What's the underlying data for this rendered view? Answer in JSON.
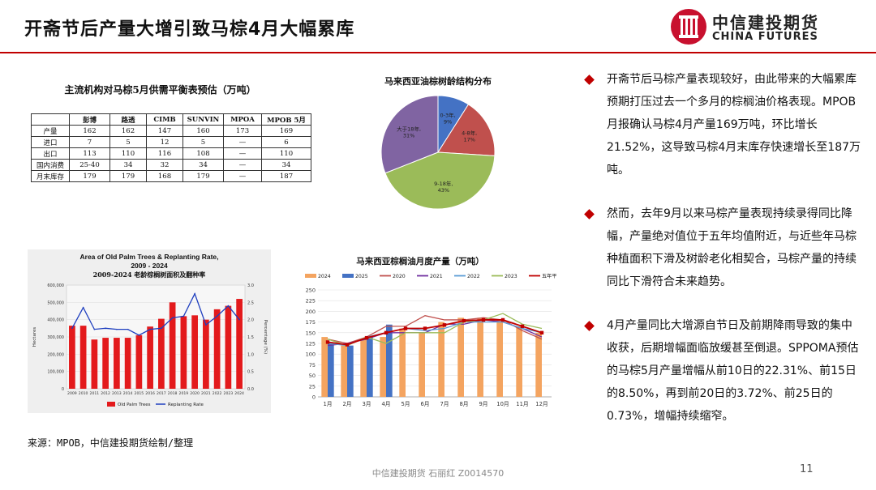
{
  "page": {
    "title": "开斋节后产量大增引致马棕4月大幅累库",
    "logo_cn": "中信建投期货",
    "logo_en": "CHINA FUTURES",
    "source": "来源：MPOB，中信建投期货绘制/整理",
    "footer": "中信建投期货 石丽红 Z0014570",
    "page_number": "11"
  },
  "balance_table": {
    "title": "主流机构对马棕5月供需平衡表预估（万吨）",
    "headers": [
      "",
      "彭博",
      "路透",
      "CIMB",
      "SUNVIN",
      "MPOA",
      "MPOB 5月"
    ],
    "rows": [
      [
        "产量",
        "162",
        "162",
        "147",
        "160",
        "173",
        "169"
      ],
      [
        "进口",
        "7",
        "5",
        "12",
        "5",
        "—",
        "6"
      ],
      [
        "出口",
        "113",
        "110",
        "116",
        "108",
        "—",
        "110"
      ],
      [
        "国内消费",
        "25-40",
        "34",
        "32",
        "34",
        "—",
        "34"
      ],
      [
        "月末库存",
        "179",
        "179",
        "168",
        "179",
        "—",
        "187"
      ]
    ]
  },
  "bullets": [
    "开斋节后马棕产量表现较好，由此带来的大幅累库预期打压过去一个多月的棕榈油价格表现。MPOB月报确认马棕4月产量169万吨，环比增长21.52%，这导致马棕4月末库存快速增长至187万吨。",
    "然而，去年9月以来马棕产量表现持续录得同比降幅，产量绝对值位于五年均值附近，与近些年马棕种植面积下滑及树龄老化相契合，马棕产量的持续同比下滑符合未来趋势。",
    "4月产量同比大增源自节日及前期降雨导致的集中收获，后期增幅面临放缓甚至倒退。SPPOMA预估的马棕5月产量增幅从前10日的22.31%、前15日的8.50%，再到前20日的3.72%、前25日的0.73%，增幅持续缩窄。"
  ],
  "chart_data": [
    {
      "type": "pie",
      "title": "马来西亚油棕树龄结构分布",
      "categories": [
        "0-3年",
        "4-8年",
        "9-18年",
        "大于18年"
      ],
      "values": [
        9,
        17,
        43,
        31
      ],
      "labels": [
        "0-3年, 9%",
        "4-8年, 17%",
        "9-18年, 43%",
        "大于18年, 31%"
      ],
      "colors": [
        "#4472c4",
        "#c0504d",
        "#9bbb59",
        "#8064a2"
      ]
    },
    {
      "type": "bar",
      "title": "Area of Old Palm Trees & Replanting Rate, 2009 - 2024",
      "subtitle": "2009-2024 老龄棕榈树面积及翻种率",
      "ylabel": "Hectares",
      "y2label": "Percentage (%)",
      "ylim": [
        0,
        600000
      ],
      "y2lim": [
        0,
        3.0
      ],
      "yticks": [
        "0",
        "100,000",
        "200,000",
        "300,000",
        "400,000",
        "500,000",
        "600,000"
      ],
      "y2ticks": [
        "0.0",
        "0.5",
        "1.0",
        "1.5",
        "2.0",
        "2.5",
        "3.0"
      ],
      "categories": [
        "2009",
        "2010",
        "2011",
        "2012",
        "2013",
        "2014",
        "2015",
        "2016",
        "2017",
        "2018",
        "2019",
        "2020",
        "2021",
        "2022",
        "2023",
        "2024"
      ],
      "series": [
        {
          "name": "Old Palm Trees",
          "type": "bar",
          "color": "#e31a1c",
          "values": [
            365000,
            365000,
            285000,
            295000,
            295000,
            295000,
            310000,
            360000,
            405000,
            500000,
            420000,
            425000,
            400000,
            460000,
            480000,
            520000
          ]
        },
        {
          "name": "Replanting Rate",
          "type": "line",
          "axis": "right",
          "color": "#1f3fbf",
          "values": [
            1.75,
            2.35,
            1.72,
            1.75,
            1.72,
            1.72,
            1.55,
            1.72,
            1.75,
            2.05,
            2.1,
            2.75,
            1.85,
            2.1,
            2.4,
            2.0
          ]
        }
      ]
    },
    {
      "type": "bar",
      "title": "马来西亚棕榈油月度产量（万吨）",
      "ylim": [
        0,
        250
      ],
      "yticks": [
        "0",
        "25",
        "50",
        "75",
        "100",
        "125",
        "150",
        "175",
        "200",
        "225",
        "250"
      ],
      "categories": [
        "1月",
        "2月",
        "3月",
        "4月",
        "5月",
        "6月",
        "7月",
        "8月",
        "9月",
        "10月",
        "11月",
        "12月"
      ],
      "series": [
        {
          "name": "2024",
          "type": "bar",
          "color": "#f4a460",
          "values": [
            140,
            120,
            135,
            140,
            160,
            150,
            175,
            185,
            185,
            180,
            165,
            150
          ]
        },
        {
          "name": "2025",
          "type": "bar",
          "color": "#4472c4",
          "values": [
            125,
            120,
            140,
            169,
            null,
            null,
            null,
            null,
            null,
            null,
            null,
            null
          ]
        },
        {
          "name": "2020",
          "type": "line",
          "color": "#c0504d",
          "values": [
            135,
            125,
            140,
            165,
            165,
            190,
            180,
            180,
            185,
            180,
            155,
            135
          ]
        },
        {
          "name": "2021",
          "type": "line",
          "color": "#7030a0",
          "values": [
            120,
            125,
            135,
            150,
            150,
            150,
            170,
            170,
            180,
            175,
            160,
            140
          ]
        },
        {
          "name": "2022",
          "type": "line",
          "color": "#5b9bd5",
          "values": [
            125,
            120,
            140,
            150,
            160,
            155,
            160,
            175,
            175,
            175,
            160,
            150
          ]
        },
        {
          "name": "2023",
          "type": "line",
          "color": "#9bbb59",
          "values": [
            135,
            120,
            140,
            125,
            150,
            150,
            150,
            175,
            180,
            195,
            170,
            160
          ]
        },
        {
          "name": "五年平均",
          "type": "line",
          "color": "#c00000",
          "values": [
            128,
            122,
            138,
            150,
            160,
            160,
            168,
            178,
            180,
            180,
            165,
            150
          ]
        }
      ]
    }
  ]
}
